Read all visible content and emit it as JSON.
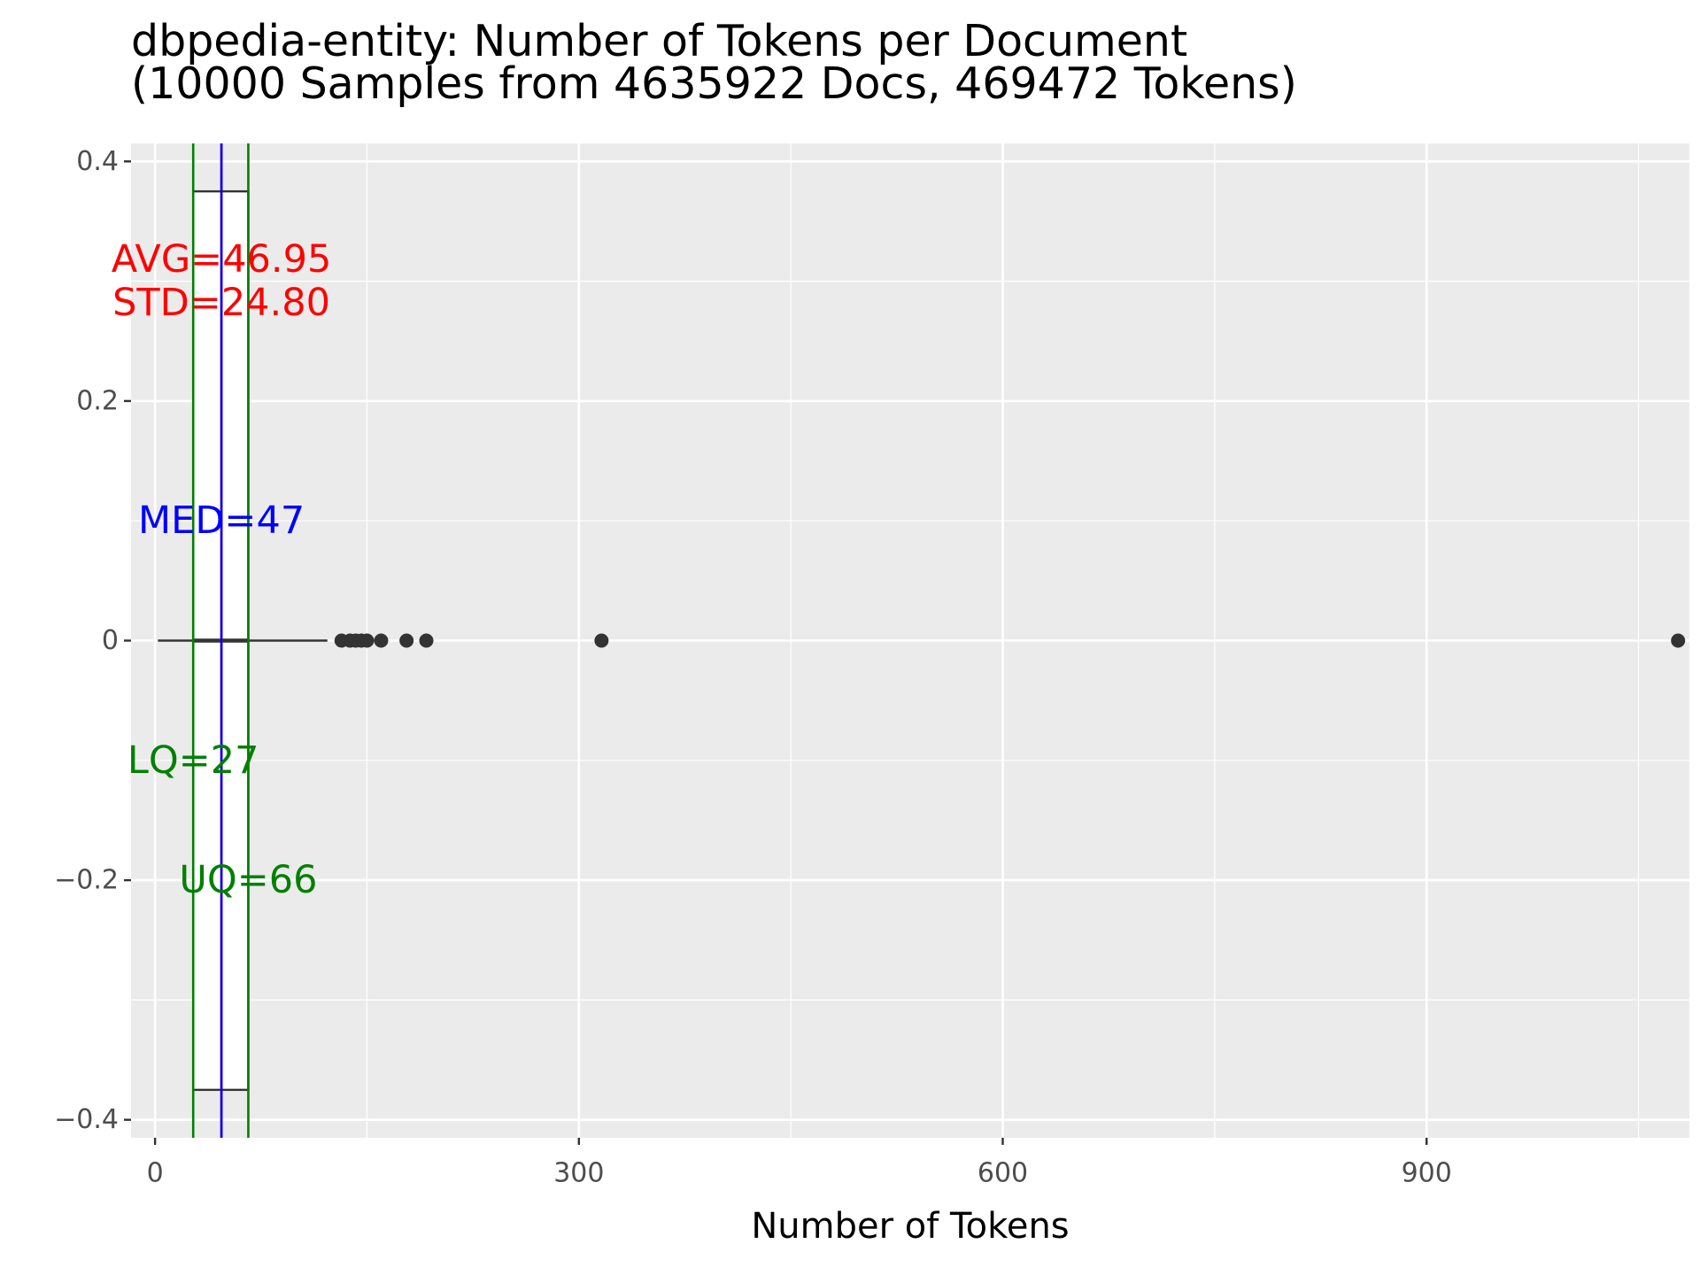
{
  "chart_data": {
    "type": "boxplot",
    "title": "dbpedia-entity: Number of Tokens per Document",
    "subtitle": "(10000 Samples from 4635922 Docs, 469472 Tokens)",
    "xlabel": "Number of Tokens",
    "ylabel": "",
    "xlim": [
      -17,
      1086
    ],
    "ylim": [
      -0.415,
      0.415
    ],
    "x_ticks": [
      0,
      300,
      600,
      900
    ],
    "x_tick_labels": [
      "0",
      "300",
      "600",
      "900"
    ],
    "y_ticks": [
      -0.4,
      -0.2,
      0,
      0.2,
      0.4
    ],
    "y_tick_labels": [
      "−0.4",
      "−0.2",
      "0",
      "0.2",
      "0.4"
    ],
    "grid": true,
    "box": {
      "y": 0,
      "whisker_low": 2,
      "q1": 27,
      "median": 47,
      "q3": 66,
      "whisker_high": 122,
      "half_width": 0.375,
      "outliers": [
        132,
        138,
        142,
        146,
        150,
        160,
        178,
        192,
        316,
        1078
      ]
    },
    "reference_lines": [
      {
        "name": "LQ",
        "x": 27,
        "color": "#008000"
      },
      {
        "name": "UQ",
        "x": 66,
        "color": "#008000"
      },
      {
        "name": "AVG",
        "x": 46.95,
        "color": "#ff0000"
      },
      {
        "name": "MED",
        "x": 47,
        "color": "#0000ff"
      }
    ],
    "annotations": [
      {
        "text": "AVG=46.95",
        "x": 46.95,
        "y": 0.318,
        "color": "#ff0000"
      },
      {
        "text": "STD=24.80",
        "x": 46.95,
        "y": 0.282,
        "color": "#ff0000"
      },
      {
        "text": "MED=47",
        "x": 47,
        "y": 0.1,
        "color": "#0000ff"
      },
      {
        "text": "LQ=27",
        "x": 27,
        "y": -0.1,
        "color": "#008000"
      },
      {
        "text": "UQ=66",
        "x": 66,
        "y": -0.2,
        "color": "#008000"
      }
    ],
    "colors": {
      "panel": "#ebebeb",
      "grid": "#ffffff",
      "box": "#333333",
      "axis_text": "#4d4d4d"
    }
  }
}
